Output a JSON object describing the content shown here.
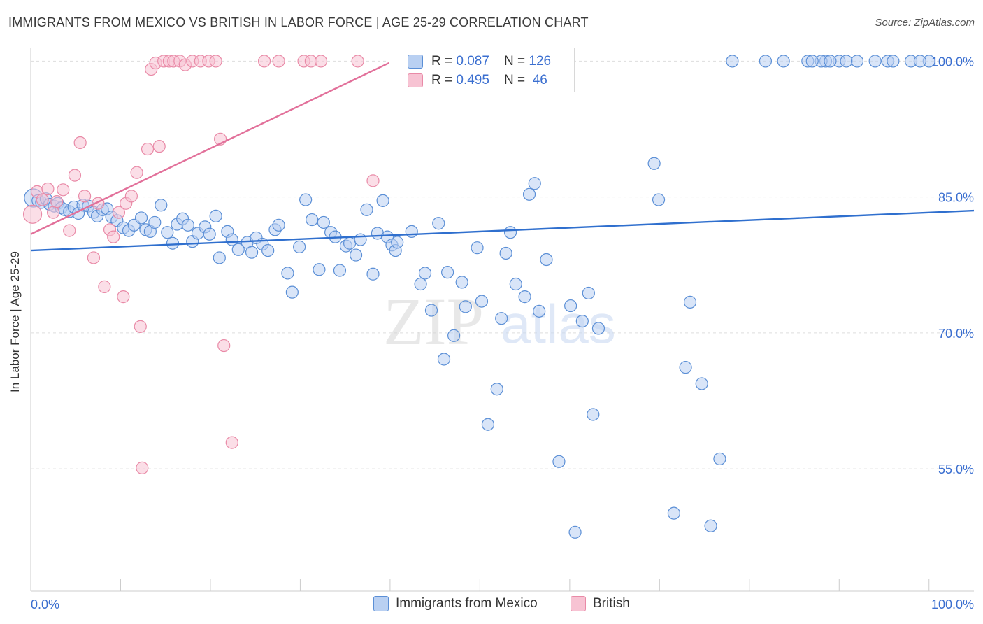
{
  "title": "IMMIGRANTS FROM MEXICO VS BRITISH IN LABOR FORCE | AGE 25-29 CORRELATION CHART",
  "source": "Source: ZipAtlas.com",
  "watermark": {
    "zip": "ZIP",
    "atlas": "atlas"
  },
  "colors": {
    "blue_fill": "#b9d0f2",
    "blue_stroke": "#5b8fd6",
    "blue_line": "#2f6fce",
    "pink_fill": "#f7c3d3",
    "pink_stroke": "#e98aa7",
    "pink_line": "#e2709a",
    "axis_text": "#3b6fd0",
    "grid": "#dddddd"
  },
  "legend": {
    "series": [
      {
        "r_label": "R = ",
        "r_value": "0.087",
        "n_label": "N = ",
        "n_value": "126"
      },
      {
        "r_label": "R = ",
        "r_value": "0.495",
        "n_label": "N = ",
        "n_value": " 46"
      }
    ]
  },
  "bottom_legend": [
    "Immigrants from Mexico",
    "British"
  ],
  "chart_data": {
    "type": "scatter",
    "title": "IMMIGRANTS FROM MEXICO VS BRITISH IN LABOR FORCE | AGE 25-29 CORRELATION CHART",
    "xlabel": "",
    "ylabel": "In Labor Force | Age 25-29",
    "xlim": [
      0,
      105
    ],
    "ylim": [
      41.5,
      101.5
    ],
    "x_tick_labels": [
      "0.0%",
      "100.0%"
    ],
    "y_ticks": [
      100,
      85,
      70,
      55
    ],
    "y_tick_labels": [
      "100.0%",
      "85.0%",
      "70.0%",
      "55.0%"
    ],
    "series": [
      {
        "name": "Immigrants from Mexico",
        "r": 0.087,
        "n": 126,
        "trend": {
          "x": [
            0,
            105
          ],
          "y": [
            79.1,
            83.5
          ]
        },
        "points": [
          [
            0.3,
            84.9
          ],
          [
            0.8,
            84.6
          ],
          [
            1.2,
            84.4
          ],
          [
            1.7,
            84.8
          ],
          [
            2.1,
            84.2
          ],
          [
            2.6,
            84.0
          ],
          [
            3.0,
            84.3
          ],
          [
            3.4,
            83.8
          ],
          [
            3.8,
            83.6
          ],
          [
            4.3,
            83.4
          ],
          [
            4.8,
            83.9
          ],
          [
            5.3,
            83.2
          ],
          [
            5.8,
            84.1
          ],
          [
            6.4,
            84.0
          ],
          [
            7.0,
            83.3
          ],
          [
            7.4,
            82.9
          ],
          [
            8.0,
            83.6
          ],
          [
            8.5,
            83.7
          ],
          [
            9.0,
            82.8
          ],
          [
            9.6,
            82.4
          ],
          [
            10.3,
            81.6
          ],
          [
            10.9,
            81.3
          ],
          [
            11.5,
            81.9
          ],
          [
            12.3,
            82.7
          ],
          [
            12.8,
            81.4
          ],
          [
            13.3,
            81.2
          ],
          [
            13.8,
            82.2
          ],
          [
            14.5,
            84.1
          ],
          [
            15.2,
            81.1
          ],
          [
            15.8,
            79.9
          ],
          [
            16.3,
            82.0
          ],
          [
            16.9,
            82.6
          ],
          [
            17.5,
            81.9
          ],
          [
            18.0,
            80.1
          ],
          [
            18.6,
            81.0
          ],
          [
            19.4,
            81.7
          ],
          [
            19.9,
            80.9
          ],
          [
            20.6,
            82.9
          ],
          [
            21.0,
            78.3
          ],
          [
            21.9,
            81.2
          ],
          [
            22.4,
            80.3
          ],
          [
            23.1,
            79.2
          ],
          [
            24.1,
            80.0
          ],
          [
            24.6,
            78.9
          ],
          [
            25.1,
            80.5
          ],
          [
            25.8,
            79.8
          ],
          [
            26.4,
            79.1
          ],
          [
            27.2,
            81.4
          ],
          [
            27.6,
            81.9
          ],
          [
            28.6,
            76.6
          ],
          [
            29.1,
            74.5
          ],
          [
            29.9,
            79.5
          ],
          [
            30.6,
            84.7
          ],
          [
            31.3,
            82.5
          ],
          [
            32.1,
            77.0
          ],
          [
            32.6,
            82.2
          ],
          [
            33.4,
            81.1
          ],
          [
            33.9,
            80.6
          ],
          [
            34.4,
            76.9
          ],
          [
            35.1,
            79.6
          ],
          [
            35.5,
            79.9
          ],
          [
            36.2,
            78.6
          ],
          [
            36.7,
            80.3
          ],
          [
            37.4,
            83.6
          ],
          [
            38.1,
            76.5
          ],
          [
            38.6,
            81.0
          ],
          [
            39.2,
            84.6
          ],
          [
            39.7,
            80.6
          ],
          [
            40.2,
            79.7
          ],
          [
            40.6,
            79.1
          ],
          [
            40.8,
            80.0
          ],
          [
            42.4,
            81.2
          ],
          [
            43.4,
            75.4
          ],
          [
            43.9,
            76.6
          ],
          [
            44.6,
            72.5
          ],
          [
            45.4,
            82.1
          ],
          [
            46.0,
            67.1
          ],
          [
            46.4,
            76.7
          ],
          [
            47.1,
            69.7
          ],
          [
            48.0,
            75.6
          ],
          [
            48.4,
            72.9
          ],
          [
            49.7,
            79.4
          ],
          [
            50.2,
            73.5
          ],
          [
            50.9,
            59.9
          ],
          [
            51.9,
            63.8
          ],
          [
            52.4,
            71.6
          ],
          [
            52.9,
            78.8
          ],
          [
            53.4,
            81.1
          ],
          [
            54.0,
            75.4
          ],
          [
            55.0,
            74.0
          ],
          [
            55.5,
            85.3
          ],
          [
            56.1,
            86.5
          ],
          [
            56.6,
            72.4
          ],
          [
            57.4,
            78.1
          ],
          [
            58.8,
            55.8
          ],
          [
            60.1,
            73.0
          ],
          [
            60.6,
            48.0
          ],
          [
            61.4,
            71.3
          ],
          [
            62.1,
            74.4
          ],
          [
            62.6,
            61.0
          ],
          [
            63.2,
            70.5
          ],
          [
            69.4,
            88.7
          ],
          [
            69.9,
            84.7
          ],
          [
            71.6,
            50.1
          ],
          [
            72.9,
            66.2
          ],
          [
            73.4,
            73.4
          ],
          [
            74.7,
            64.4
          ],
          [
            75.7,
            48.7
          ],
          [
            76.7,
            56.1
          ],
          [
            78.1,
            100
          ],
          [
            81.8,
            100
          ],
          [
            83.8,
            100
          ],
          [
            86.5,
            100
          ],
          [
            88.5,
            100
          ],
          [
            90.0,
            100
          ],
          [
            90.8,
            100
          ],
          [
            95.4,
            100
          ],
          [
            88.0,
            100
          ],
          [
            92.0,
            100
          ],
          [
            94.0,
            100
          ],
          [
            96.0,
            100
          ],
          [
            98.0,
            100
          ],
          [
            100.0,
            100
          ],
          [
            99.0,
            100
          ],
          [
            87.0,
            100
          ],
          [
            89.0,
            100
          ]
        ]
      },
      {
        "name": "British",
        "r": 0.495,
        "n": 46,
        "trend": {
          "x": [
            0,
            40.3
          ],
          "y": [
            80.9,
            100
          ]
        },
        "points": [
          [
            0.2,
            83.1
          ],
          [
            0.7,
            85.6
          ],
          [
            1.3,
            84.7
          ],
          [
            1.9,
            85.9
          ],
          [
            2.5,
            83.3
          ],
          [
            2.9,
            84.5
          ],
          [
            3.6,
            85.8
          ],
          [
            4.3,
            81.3
          ],
          [
            4.9,
            87.4
          ],
          [
            5.5,
            91.0
          ],
          [
            6.0,
            85.1
          ],
          [
            7.0,
            78.3
          ],
          [
            7.5,
            84.3
          ],
          [
            8.2,
            75.1
          ],
          [
            8.8,
            81.4
          ],
          [
            9.2,
            80.6
          ],
          [
            9.8,
            83.3
          ],
          [
            10.3,
            74.0
          ],
          [
            10.6,
            84.3
          ],
          [
            11.2,
            85.1
          ],
          [
            11.8,
            87.7
          ],
          [
            12.2,
            70.7
          ],
          [
            13.0,
            90.3
          ],
          [
            13.4,
            99.1
          ],
          [
            13.9,
            99.8
          ],
          [
            14.3,
            90.6
          ],
          [
            14.8,
            100
          ],
          [
            15.4,
            100
          ],
          [
            15.9,
            100
          ],
          [
            16.6,
            100
          ],
          [
            17.2,
            99.6
          ],
          [
            18.0,
            100
          ],
          [
            18.9,
            100
          ],
          [
            19.8,
            100
          ],
          [
            20.6,
            100
          ],
          [
            21.1,
            91.4
          ],
          [
            21.5,
            68.6
          ],
          [
            22.4,
            57.9
          ],
          [
            12.4,
            55.1
          ],
          [
            26.0,
            100
          ],
          [
            27.6,
            100
          ],
          [
            30.4,
            100
          ],
          [
            31.2,
            100
          ],
          [
            32.3,
            100
          ],
          [
            36.4,
            100
          ],
          [
            38.1,
            86.8
          ]
        ]
      }
    ]
  }
}
